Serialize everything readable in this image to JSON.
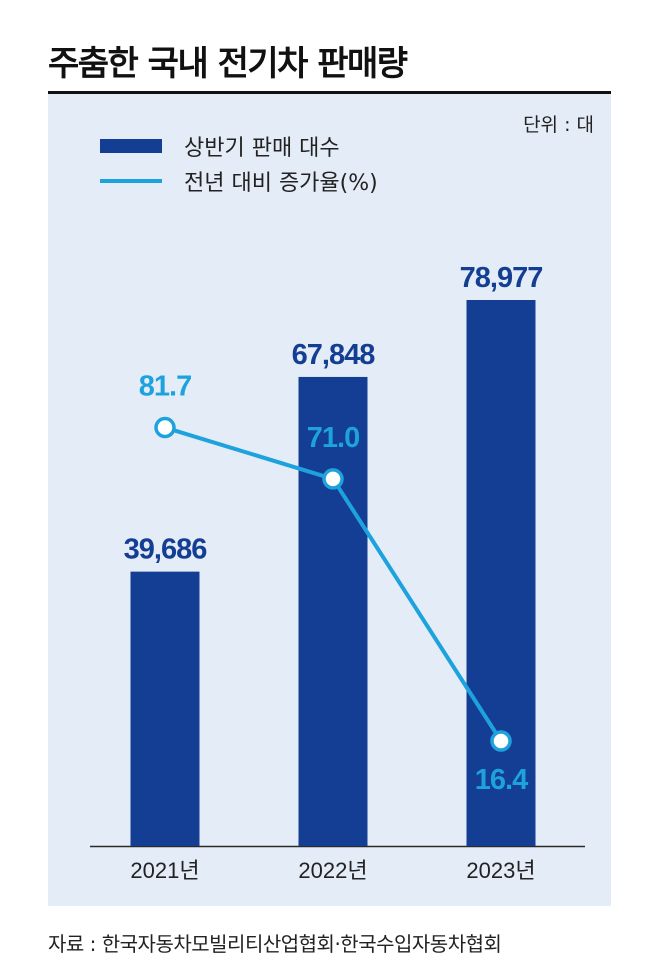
{
  "title": "주춤한 국내 전기차 판매량",
  "unit_label": "단위 : 대",
  "source": "자료 : 한국자동차모빌리티산업협회·한국수입자동차협회",
  "colors": {
    "bar": "#143e93",
    "line": "#1ea2dd",
    "panel": "#e4edf7",
    "bar_label": "#143e93"
  },
  "chart_data": {
    "type": "bar",
    "title": "주춤한 국내 전기차 판매량",
    "categories": [
      "2021년",
      "2022년",
      "2023년"
    ],
    "series": [
      {
        "name": "상반기 판매 대수",
        "type": "bar",
        "values": [
          39686,
          67848,
          78977
        ],
        "labels": [
          "39,686",
          "67,848",
          "78,977"
        ]
      },
      {
        "name": "전년 대비 증가율(%)",
        "type": "line",
        "values": [
          81.7,
          71.0,
          16.4
        ],
        "labels": [
          "81.7",
          "71.0",
          "16.4"
        ]
      }
    ],
    "legend": "top-left",
    "grid": false
  }
}
